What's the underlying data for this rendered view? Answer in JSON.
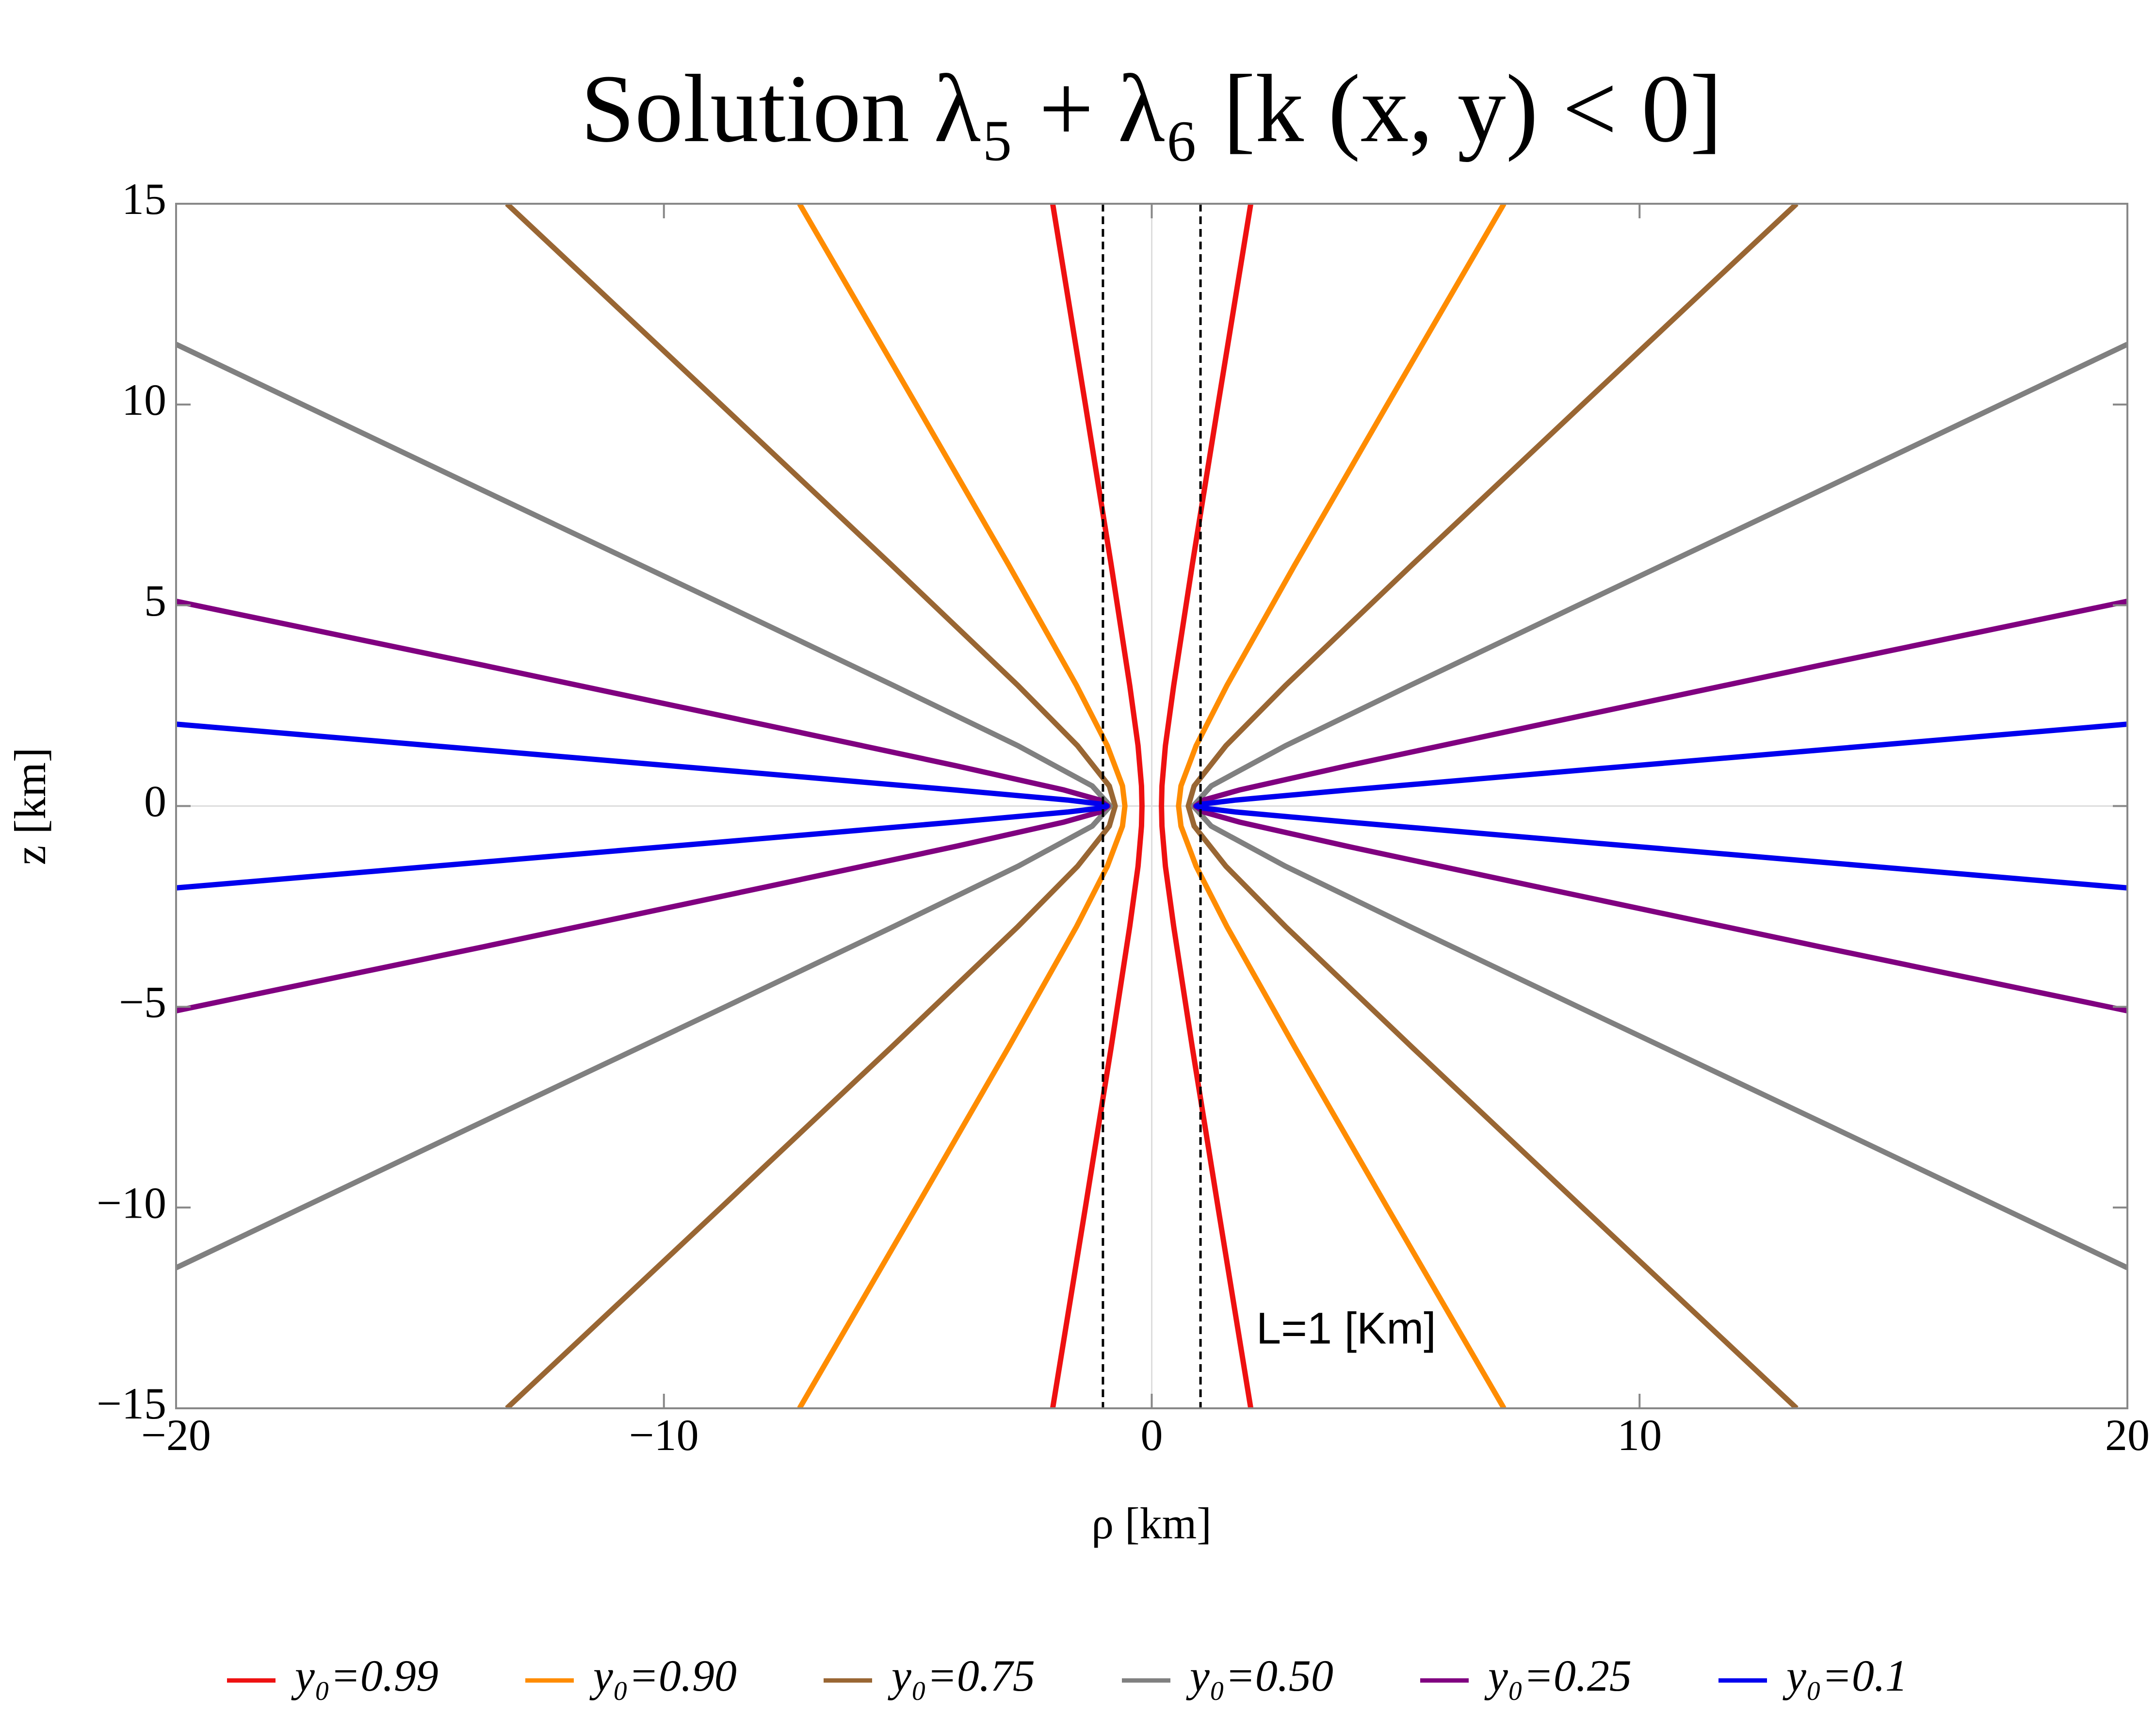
{
  "chart_data": {
    "type": "line",
    "title": "Solution λ₅ + λ₆ [k (x, y) < 0]",
    "x_label": "ρ [km]",
    "y_label": "z [km]",
    "annotation": "L=1 [Km]",
    "xlim": [
      -20,
      20
    ],
    "ylim": [
      -15,
      15
    ],
    "xticks": [
      {
        "value": -20,
        "label": "−20"
      },
      {
        "value": -10,
        "label": "−10"
      },
      0,
      10,
      20
    ],
    "yticks": [
      {
        "value": -15,
        "label": "−15"
      },
      {
        "value": -10,
        "label": "−10"
      },
      {
        "value": -5,
        "label": "−5"
      },
      0,
      5,
      10,
      15
    ],
    "vlines": [
      -1,
      1
    ],
    "legend": "bottom",
    "series": [
      {
        "name": "y₀=0.99",
        "color": "#ee1111",
        "x": [
          -2.03,
          -1.36,
          -0.83,
          -0.45,
          -0.28,
          -0.21,
          -0.2,
          -0.21,
          -0.28,
          -0.45,
          -0.83,
          -1.36,
          -2.03,
          null,
          2.03,
          1.36,
          0.83,
          0.45,
          0.28,
          0.21,
          0.2,
          0.21,
          0.28,
          0.45,
          0.83,
          1.36,
          2.03
        ],
        "values": [
          15,
          10,
          6,
          3,
          1.5,
          0.5,
          0,
          -0.5,
          -1.5,
          -3,
          -6,
          -10,
          -15,
          null,
          15,
          10,
          6,
          3,
          1.5,
          0.5,
          0,
          -0.5,
          -1.5,
          -3,
          -6,
          -10,
          -15
        ]
      },
      {
        "name": "y₀=0.90",
        "color": "#ff8c00",
        "x": [
          -7.22,
          -4.83,
          -2.93,
          -1.54,
          -0.91,
          -0.6,
          -0.55,
          -0.6,
          -0.91,
          -1.54,
          -2.93,
          -4.83,
          -7.22,
          null,
          7.22,
          4.83,
          2.93,
          1.54,
          0.91,
          0.6,
          0.55,
          0.6,
          0.91,
          1.54,
          2.93,
          4.83,
          7.22
        ],
        "values": [
          15,
          10,
          6,
          3,
          1.5,
          0.5,
          0,
          -0.5,
          -1.5,
          -3,
          -6,
          -10,
          -15,
          null,
          15,
          10,
          6,
          3,
          1.5,
          0.5,
          0,
          -0.5,
          -1.5,
          -3,
          -6,
          -10,
          -15
        ]
      },
      {
        "name": "y₀=0.75",
        "color": "#996633",
        "x": [
          -13.22,
          -8.83,
          -5.33,
          -2.74,
          -1.52,
          -0.87,
          -0.75,
          -0.87,
          -1.52,
          -2.74,
          -5.33,
          -8.83,
          -13.22,
          null,
          13.22,
          8.83,
          5.33,
          2.74,
          1.52,
          0.87,
          0.75,
          0.87,
          1.52,
          2.74,
          5.33,
          8.83,
          13.22
        ],
        "values": [
          15,
          10,
          6,
          3,
          1.5,
          0.5,
          0,
          -0.5,
          -1.5,
          -3,
          -6,
          -10,
          -15,
          null,
          15,
          10,
          6,
          3,
          1.5,
          0.5,
          0,
          -0.5,
          -1.5,
          -3,
          -6,
          -10,
          -15
        ]
      },
      {
        "name": "y₀=0.50",
        "color": "#808080",
        "x": [
          -20,
          -13.95,
          -8.74,
          -5.29,
          -2.74,
          -1.22,
          -0.85,
          -1.22,
          -2.74,
          -5.29,
          -8.74,
          -13.95,
          -20,
          null,
          20,
          13.95,
          8.74,
          5.29,
          2.74,
          1.22,
          0.85,
          1.22,
          2.74,
          5.29,
          8.74,
          13.95,
          20
        ],
        "values": [
          11.5,
          8,
          5,
          3,
          1.5,
          0.5,
          0,
          -0.5,
          -1.5,
          -3,
          -5,
          -8,
          -11.5,
          null,
          11.5,
          8,
          5,
          3,
          1.5,
          0.5,
          0,
          -0.5,
          -1.5,
          -3,
          -5,
          -8,
          -11.5
        ]
      },
      {
        "name": "y₀=0.25",
        "color": "#800080",
        "x": [
          -20,
          -13.68,
          -7.85,
          -4.0,
          -1.8,
          -1.07,
          -0.9,
          -1.07,
          -1.8,
          -4.0,
          -7.85,
          -13.68,
          -20,
          null,
          20,
          13.68,
          7.85,
          4.0,
          1.8,
          1.07,
          0.9,
          1.07,
          1.8,
          4.0,
          7.85,
          13.68,
          20
        ],
        "values": [
          5.1,
          3.5,
          2,
          1,
          0.4,
          0.15,
          0,
          -0.15,
          -0.4,
          -1,
          -2,
          -3.5,
          -5.1,
          null,
          5.1,
          3.5,
          2,
          1,
          0.4,
          0.15,
          0,
          -0.15,
          -0.4,
          -1,
          -2,
          -3.5,
          -5.1
        ]
      },
      {
        "name": "y₀=0.1",
        "color": "#0000ee",
        "x": [
          -20,
          -13.75,
          -7.89,
          -4.03,
          -1.73,
          -1.04,
          -0.92,
          -1.04,
          -1.73,
          -4.03,
          -7.89,
          -13.75,
          -20,
          null,
          20,
          13.75,
          7.89,
          4.03,
          1.73,
          1.04,
          0.92,
          1.04,
          1.73,
          4.03,
          7.89,
          13.75,
          20
        ],
        "values": [
          2.04,
          1.4,
          0.8,
          0.4,
          0.15,
          0.05,
          0,
          -0.05,
          -0.15,
          -0.4,
          -0.8,
          -1.4,
          -2.04,
          null,
          2.04,
          1.4,
          0.8,
          0.4,
          0.15,
          0.05,
          0,
          -0.05,
          -0.15,
          -0.4,
          -0.8,
          -1.4,
          -2.04
        ]
      }
    ]
  }
}
